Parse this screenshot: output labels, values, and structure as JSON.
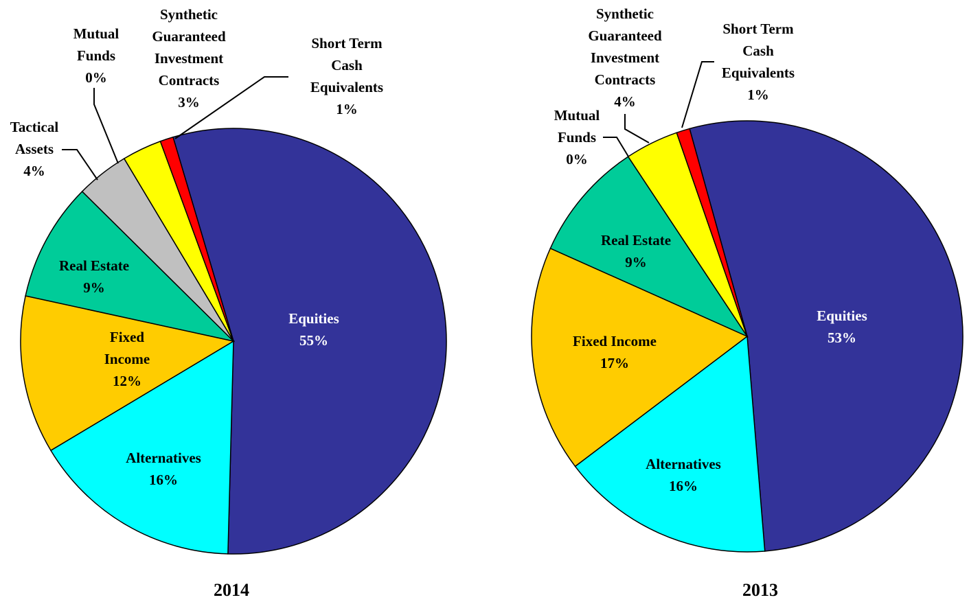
{
  "chart_data": [
    {
      "type": "pie",
      "title": "2014",
      "categories": [
        "Equities",
        "Alternatives",
        "Fixed Income",
        "Real Estate",
        "Tactical Assets",
        "Mutual Funds",
        "Synthetic Guaranteed Investment Contracts",
        "Short Term Cash Equivalents"
      ],
      "values": [
        55,
        16,
        12,
        9,
        4,
        0,
        3,
        1
      ],
      "value_labels": [
        "55%",
        "16%",
        "12%",
        "9%",
        "4%",
        "0%",
        "3%",
        "1%"
      ],
      "colors": [
        "#333399",
        "#00ffff",
        "#ffcc00",
        "#00cc99",
        "#c0c0c0",
        "#003366",
        "#ffff00",
        "#ff0000"
      ]
    },
    {
      "type": "pie",
      "title": "2013",
      "categories": [
        "Equities",
        "Alternatives",
        "Fixed Income",
        "Real Estate",
        "Mutual Funds",
        "Synthetic Guaranteed Investment Contracts",
        "Short Term Cash Equivalents"
      ],
      "values": [
        53,
        16,
        17,
        9,
        0,
        4,
        1
      ],
      "value_labels": [
        "53%",
        "16%",
        "17%",
        "9%",
        "0%",
        "4%",
        "1%"
      ],
      "colors": [
        "#333399",
        "#00ffff",
        "#ffcc00",
        "#00cc99",
        "#003366",
        "#ffff00",
        "#ff0000"
      ]
    }
  ]
}
